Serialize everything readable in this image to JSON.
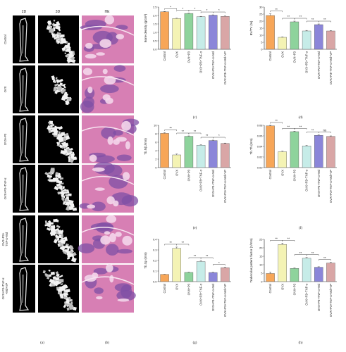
{
  "figure": {
    "column_headers": [
      "2D",
      "3D",
      "HE"
    ],
    "row_labels": [
      "Control",
      "OVX",
      "OVX+P3",
      "OVX+P3+TNF-α",
      "OVX+P3+\nTNF-α+Md",
      "OVX+P3+TNF-α\n+Md+VP"
    ],
    "panel_labels": {
      "a": "(a)",
      "b": "(b)",
      "c": "(c)",
      "d": "(d)",
      "e": "(e)",
      "f": "(f)",
      "g": "(g)",
      "h": "(h)"
    }
  },
  "colors": {
    "bar": [
      "#f7a658",
      "#f4f3b4",
      "#8ed39c",
      "#c6ece8",
      "#8b86d9",
      "#d9a6a6"
    ],
    "bar_stroke": "#555555",
    "he_pink": "#d77fb4",
    "he_purple": "#7f4fa6"
  },
  "chart_data": [
    {
      "panel": "c",
      "type": "bar",
      "categories": [
        "Control",
        "OVX",
        "OVX+P3",
        "OVX+P3+TNF-α",
        "OVX+P3+TNF-α+Md",
        "OVX+P3+TNF-α+Md+VP"
      ],
      "values": [
        2.22,
        1.82,
        2.12,
        1.93,
        2.02,
        1.95
      ],
      "errors": [
        0.02,
        0.02,
        0.02,
        0.02,
        0.02,
        0.02
      ],
      "ylabel": "Bone density (g/cm³)",
      "ylim": [
        0,
        2.5
      ],
      "yticks": [
        "0.0",
        "0.5",
        "1.0",
        "1.5",
        "2.0",
        "2.5"
      ],
      "sig": [
        {
          "from": 0,
          "to": 1,
          "text": "*"
        },
        {
          "from": 1,
          "to": 2,
          "text": "*"
        },
        {
          "from": 2,
          "to": 3,
          "text": "*"
        },
        {
          "from": 3,
          "to": 4,
          "text": "*"
        },
        {
          "from": 4,
          "to": 5,
          "text": "*"
        }
      ]
    },
    {
      "panel": "d",
      "type": "bar",
      "categories": [
        "Control",
        "OVX",
        "OVX+P3",
        "OVX+P3+TNF-α",
        "OVX+P3+TNF-α+Md",
        "OVX+P3+TNF-α+Md+VP"
      ],
      "values": [
        24,
        8.5,
        19.5,
        13,
        17.5,
        13
      ],
      "errors": [
        1.2,
        0.3,
        0.5,
        0.4,
        0.5,
        0.3
      ],
      "ylabel": "BV/TV (%)",
      "ylim": [
        0,
        30
      ],
      "yticks": [
        "0",
        "5",
        "10",
        "15",
        "20",
        "25",
        "30"
      ],
      "sig": [
        {
          "from": 0,
          "to": 1,
          "text": "**"
        },
        {
          "from": 1,
          "to": 2,
          "text": "**"
        },
        {
          "from": 2,
          "to": 3,
          "text": "**"
        },
        {
          "from": 3,
          "to": 4,
          "text": "**"
        },
        {
          "from": 4,
          "to": 5,
          "text": "**"
        }
      ]
    },
    {
      "panel": "e",
      "type": "bar",
      "categories": [
        "Control",
        "OVX",
        "OVX+P3",
        "OVX+P3+TNF-α",
        "OVX+P3+TNF-α+Md",
        "OVX+P3+TNF-α+Md+VP"
      ],
      "values": [
        8.1,
        3.0,
        7.4,
        5.3,
        6.4,
        5.7
      ],
      "errors": [
        0.15,
        0.2,
        0.1,
        0.1,
        0.1,
        0.1
      ],
      "ylabel": "Tb.N(1/mm)",
      "ylim": [
        0,
        10
      ],
      "yticks": [
        "0",
        "2",
        "4",
        "6",
        "8",
        "10"
      ],
      "sig": [
        {
          "from": 0,
          "to": 1,
          "text": "**"
        },
        {
          "from": 1,
          "to": 2,
          "text": "**"
        },
        {
          "from": 2,
          "to": 3,
          "text": "**"
        },
        {
          "from": 3,
          "to": 4,
          "text": "**"
        },
        {
          "from": 4,
          "to": 5,
          "text": "*"
        }
      ]
    },
    {
      "panel": "f",
      "type": "bar",
      "categories": [
        "Control",
        "OVX",
        "OVX+P3",
        "OVX+P3+TNF-α",
        "OVX+P3+TNF-α+Md",
        "OVX+P3+TNF-α+Md+VP"
      ],
      "values": [
        0.079,
        0.03,
        0.068,
        0.041,
        0.061,
        0.059
      ],
      "errors": [
        0.001,
        0.001,
        0.001,
        0.001,
        0.001,
        0.001
      ],
      "ylabel": "Tb.Th (mm)",
      "ylim": [
        0,
        0.08
      ],
      "yticks": [
        "0.00",
        "0.02",
        "0.04",
        "0.06",
        "0.08"
      ],
      "sig": [
        {
          "from": 0,
          "to": 1,
          "text": "**"
        },
        {
          "from": 1,
          "to": 2,
          "text": "**"
        },
        {
          "from": 2,
          "to": 3,
          "text": "**"
        },
        {
          "from": 3,
          "to": 4,
          "text": "**"
        },
        {
          "from": 4,
          "to": 5,
          "text": "ns"
        }
      ]
    },
    {
      "panel": "g",
      "type": "bar",
      "categories": [
        "Control",
        "OVX",
        "OVX+P3",
        "OVX+P3+TNF-α",
        "OVX+P3+TNF-α+Md",
        "OVX+P3+TNF-α+Md+VP"
      ],
      "values": [
        0.068,
        0.315,
        0.087,
        0.19,
        0.086,
        0.132
      ],
      "errors": [
        0.002,
        0.012,
        0.003,
        0.01,
        0.003,
        0.004
      ],
      "ylabel": "Tb.Sp (mm)",
      "ylim": [
        0,
        0.4
      ],
      "yticks": [
        "0.0",
        "0.1",
        "0.2",
        "0.3",
        "0.4"
      ],
      "sig": [
        {
          "from": 0,
          "to": 1,
          "text": "**"
        },
        {
          "from": 1,
          "to": 2,
          "text": "**"
        },
        {
          "from": 2,
          "to": 3,
          "text": "**"
        },
        {
          "from": 3,
          "to": 4,
          "text": "**"
        },
        {
          "from": 4,
          "to": 5,
          "text": "*"
        }
      ]
    },
    {
      "panel": "h",
      "type": "bar",
      "categories": [
        "Control",
        "OVX",
        "OVX+P3",
        "OVX+P3+TNF-α",
        "OVX+P3+TNF-α+Md",
        "OVX+P3+TNF-α+Md+VP"
      ],
      "values": [
        4.8,
        22.0,
        7.8,
        13.8,
        8.5,
        11.0
      ],
      "errors": [
        0.8,
        0.8,
        0.3,
        0.5,
        0.3,
        0.4
      ],
      "ylabel": "Trabecular pattern factor (1/mm)",
      "ylim": [
        0,
        25
      ],
      "yticks": [
        "0",
        "5",
        "10",
        "15",
        "20",
        "25"
      ],
      "sig": [
        {
          "from": 0,
          "to": 1,
          "text": "**"
        },
        {
          "from": 1,
          "to": 2,
          "text": "**"
        },
        {
          "from": 2,
          "to": 3,
          "text": "**"
        },
        {
          "from": 3,
          "to": 4,
          "text": "**"
        },
        {
          "from": 4,
          "to": 5,
          "text": "**"
        }
      ]
    }
  ]
}
